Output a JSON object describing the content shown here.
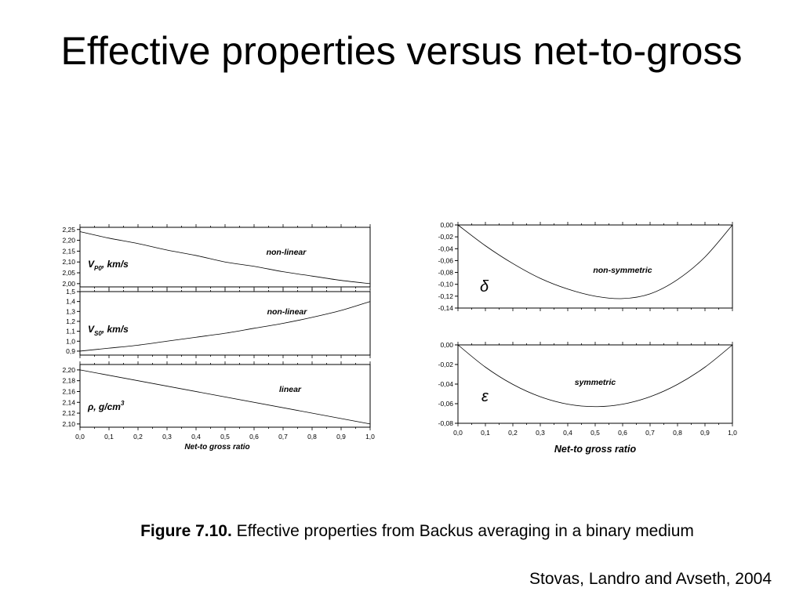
{
  "title": "Effective properties versus net-to-gross",
  "caption": {
    "label": "Figure 7.10.",
    "text": "Effective properties from Backus averaging in a binary medium"
  },
  "credit": "Stovas, Landro and Avseth, 2004",
  "chart_data": [
    {
      "type": "line",
      "panel": "left-top",
      "ylabel": "V_P0, km/s",
      "annotation": "non-linear",
      "ylim": [
        1.985,
        2.26
      ],
      "yticks": [
        "2,25",
        "2,20",
        "2,15",
        "2,10",
        "2,05",
        "2,00"
      ],
      "ytick_values": [
        2.25,
        2.2,
        2.15,
        2.1,
        2.05,
        2.0
      ],
      "x": [
        0.0,
        0.1,
        0.2,
        0.3,
        0.4,
        0.5,
        0.6,
        0.7,
        0.8,
        0.9,
        1.0
      ],
      "series": [
        {
          "values": [
            2.24,
            2.21,
            2.185,
            2.155,
            2.13,
            2.1,
            2.08,
            2.055,
            2.035,
            2.015,
            2.0
          ]
        }
      ]
    },
    {
      "type": "line",
      "panel": "left-middle",
      "ylabel": "V_S0, km/s",
      "annotation": "non-linear",
      "ylim": [
        0.86,
        1.5
      ],
      "yticks": [
        "1,5",
        "1,4",
        "1,3",
        "1,2",
        "1,1",
        "1,0",
        "0,9"
      ],
      "ytick_values": [
        1.5,
        1.4,
        1.3,
        1.2,
        1.1,
        1.0,
        0.9
      ],
      "x": [
        0.0,
        0.1,
        0.2,
        0.3,
        0.4,
        0.5,
        0.6,
        0.7,
        0.8,
        0.9,
        1.0
      ],
      "series": [
        {
          "values": [
            0.9,
            0.93,
            0.96,
            1.0,
            1.04,
            1.08,
            1.13,
            1.18,
            1.24,
            1.31,
            1.4
          ]
        }
      ]
    },
    {
      "type": "line",
      "panel": "left-bottom",
      "ylabel": "ρ, g/cm3",
      "annotation": "linear",
      "ylim": [
        2.094,
        2.21
      ],
      "yticks": [
        "2,20",
        "2,18",
        "2,16",
        "2,14",
        "2,12",
        "2,10"
      ],
      "ytick_values": [
        2.2,
        2.18,
        2.16,
        2.14,
        2.12,
        2.1
      ],
      "x": [
        0.0,
        1.0
      ],
      "series": [
        {
          "values": [
            2.2,
            2.1
          ]
        }
      ],
      "xlabel": "Net-to gross ratio",
      "xticks": [
        "0,0",
        "0,1",
        "0,2",
        "0,3",
        "0,4",
        "0,5",
        "0,6",
        "0,7",
        "0,8",
        "0,9",
        "1,0"
      ],
      "xlim": [
        0,
        1
      ]
    },
    {
      "type": "line",
      "panel": "right-top",
      "ylabel": "δ",
      "annotation": "non-symmetric",
      "ylim": [
        -0.14,
        0.0
      ],
      "yticks": [
        "0,00",
        "-0,02",
        "-0,04",
        "-0,06",
        "-0,08",
        "-0,10",
        "-0,12",
        "-0,14"
      ],
      "ytick_values": [
        0.0,
        -0.02,
        -0.04,
        -0.06,
        -0.08,
        -0.1,
        -0.12,
        -0.14
      ],
      "x": [
        0.0,
        0.1,
        0.2,
        0.3,
        0.4,
        0.5,
        0.6,
        0.7,
        0.8,
        0.9,
        1.0
      ],
      "series": [
        {
          "values": [
            0.0,
            -0.035,
            -0.065,
            -0.09,
            -0.108,
            -0.12,
            -0.124,
            -0.116,
            -0.092,
            -0.054,
            0.0
          ]
        }
      ]
    },
    {
      "type": "line",
      "panel": "right-bottom",
      "ylabel": "ε",
      "annotation": "symmetric",
      "ylim": [
        -0.08,
        0.0
      ],
      "yticks": [
        "0,00",
        "-0,02",
        "-0,04",
        "-0,06",
        "-0,08"
      ],
      "ytick_values": [
        0.0,
        -0.02,
        -0.04,
        -0.06,
        -0.08
      ],
      "x": [
        0.0,
        0.1,
        0.2,
        0.3,
        0.4,
        0.5,
        0.6,
        0.7,
        0.8,
        0.9,
        1.0
      ],
      "series": [
        {
          "values": [
            0.0,
            -0.0227,
            -0.0403,
            -0.0529,
            -0.0605,
            -0.063,
            -0.0605,
            -0.0529,
            -0.0403,
            -0.0227,
            0.0
          ]
        }
      ],
      "xlabel": "Net-to gross ratio",
      "xticks": [
        "0,0",
        "0,1",
        "0,2",
        "0,3",
        "0,4",
        "0,5",
        "0,6",
        "0,7",
        "0,8",
        "0,9",
        "1,0"
      ],
      "xlim": [
        0,
        1
      ]
    }
  ]
}
